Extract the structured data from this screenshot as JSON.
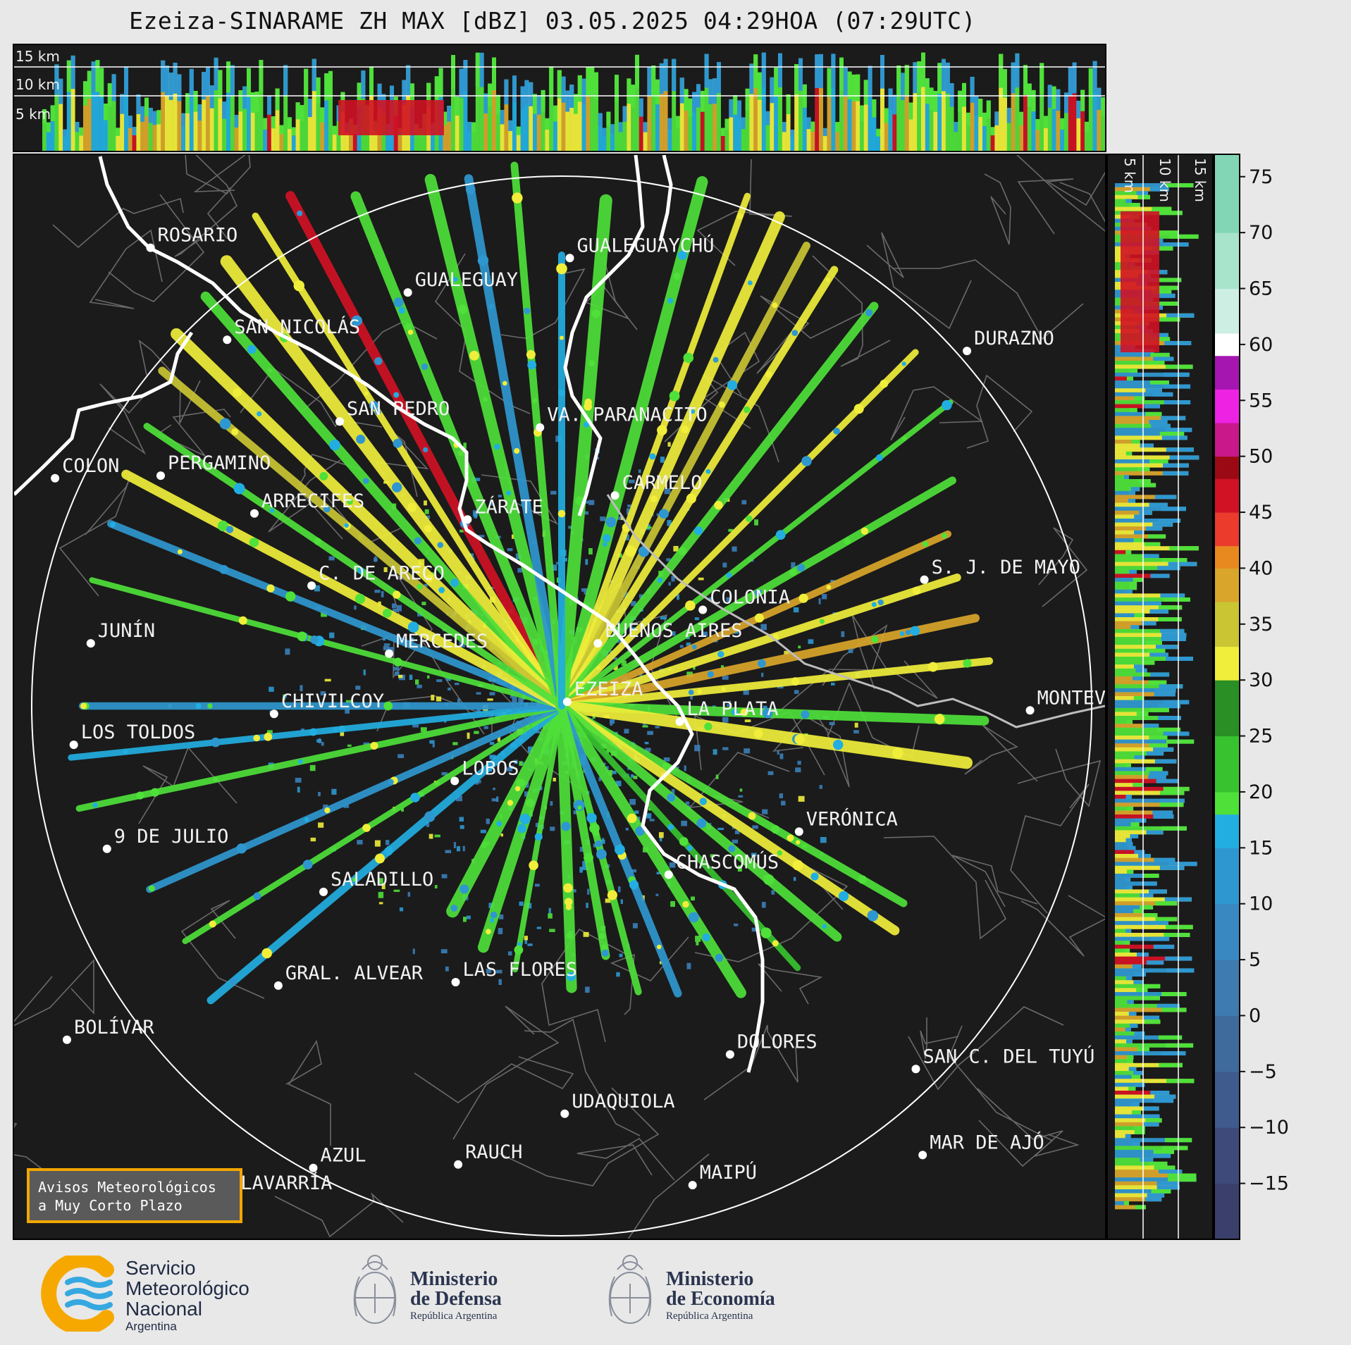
{
  "title": "Ezeiza-SINARAME ZH MAX [dBZ] 03.05.2025 04:29HOA (07:29UTC)",
  "top_panel": {
    "height_labels": [
      "15 km",
      "10 km",
      "5 km"
    ]
  },
  "side_panel": {
    "height_labels": [
      "5 km",
      "10 km",
      "15 km"
    ]
  },
  "colorbar": {
    "ticks": [
      "75",
      "70",
      "65",
      "60",
      "55",
      "50",
      "45",
      "40",
      "35",
      "30",
      "25",
      "20",
      "15",
      "10",
      "5",
      "0",
      "−5",
      "−10",
      "−15"
    ],
    "range": [
      -20,
      77
    ],
    "stops": [
      {
        "from": -20,
        "to": -15,
        "color": "#3b3f6b"
      },
      {
        "from": -15,
        "to": -10,
        "color": "#3d4a7a"
      },
      {
        "from": -10,
        "to": -5,
        "color": "#3f5a8c"
      },
      {
        "from": -5,
        "to": 0,
        "color": "#3f6a9c"
      },
      {
        "from": 0,
        "to": 5,
        "color": "#3d7bb0"
      },
      {
        "from": 5,
        "to": 10,
        "color": "#3a88c2"
      },
      {
        "from": 10,
        "to": 15,
        "color": "#2f97cf"
      },
      {
        "from": 15,
        "to": 18,
        "color": "#22aee0"
      },
      {
        "from": 18,
        "to": 20,
        "color": "#4fe03a"
      },
      {
        "from": 20,
        "to": 25,
        "color": "#38c230"
      },
      {
        "from": 25,
        "to": 30,
        "color": "#2a8f25"
      },
      {
        "from": 30,
        "to": 33,
        "color": "#f0ee3a"
      },
      {
        "from": 33,
        "to": 37,
        "color": "#c9c533"
      },
      {
        "from": 37,
        "to": 40,
        "color": "#d9a52b"
      },
      {
        "from": 40,
        "to": 42,
        "color": "#e8891f"
      },
      {
        "from": 42,
        "to": 45,
        "color": "#ea3b2d"
      },
      {
        "from": 45,
        "to": 48,
        "color": "#d01224"
      },
      {
        "from": 48,
        "to": 50,
        "color": "#9b0a14"
      },
      {
        "from": 50,
        "to": 53,
        "color": "#c8188a"
      },
      {
        "from": 53,
        "to": 56,
        "color": "#ee22e2"
      },
      {
        "from": 56,
        "to": 59,
        "color": "#a515b0"
      },
      {
        "from": 59,
        "to": 61,
        "color": "#ffffff"
      },
      {
        "from": 61,
        "to": 65,
        "color": "#cdeee3"
      },
      {
        "from": 65,
        "to": 70,
        "color": "#a8e3cc"
      },
      {
        "from": 70,
        "to": 77,
        "color": "#82d6b5"
      }
    ]
  },
  "cities": [
    {
      "name": "ROSARIO",
      "lx": 160,
      "ly": 278
    },
    {
      "name": "GUALEGUAYCHÚ",
      "lx": 652,
      "ly": 290
    },
    {
      "name": "GUALEGUAY",
      "lx": 462,
      "ly": 330
    },
    {
      "name": "SAN NICOLÁS",
      "lx": 250,
      "ly": 385
    },
    {
      "name": "DURAZNO",
      "lx": 1118,
      "ly": 398
    },
    {
      "name": "SAN PEDRO",
      "lx": 382,
      "ly": 480
    },
    {
      "name": "VA. PARANACITO",
      "lx": 617,
      "ly": 487
    },
    {
      "name": "COLON",
      "lx": 48,
      "ly": 546
    },
    {
      "name": "PERGAMINO",
      "lx": 172,
      "ly": 543
    },
    {
      "name": "CARMELO",
      "lx": 705,
      "ly": 566
    },
    {
      "name": "ARRECIFES",
      "lx": 282,
      "ly": 587
    },
    {
      "name": "ZÁRATE",
      "lx": 532,
      "ly": 594
    },
    {
      "name": "C. DE ARECO",
      "lx": 349,
      "ly": 671
    },
    {
      "name": "S. J. DE MAYO",
      "lx": 1068,
      "ly": 664
    },
    {
      "name": "COLONIA",
      "lx": 808,
      "ly": 699
    },
    {
      "name": "JUNÍN",
      "lx": 90,
      "ly": 738
    },
    {
      "name": "BUENOS AIRES",
      "lx": 685,
      "ly": 738
    },
    {
      "name": "MERCEDES",
      "lx": 440,
      "ly": 750
    },
    {
      "name": "EZEIZA",
      "lx": 649,
      "ly": 806
    },
    {
      "name": "CHIVILCOY",
      "lx": 305,
      "ly": 820
    },
    {
      "name": "MONTEVIDEO",
      "lx": 1192,
      "ly": 816
    },
    {
      "name": "LA PLATA",
      "lx": 781,
      "ly": 829
    },
    {
      "name": "LOS TOLDOS",
      "lx": 70,
      "ly": 856
    },
    {
      "name": "LOBOS",
      "lx": 517,
      "ly": 898
    },
    {
      "name": "VERÓNICA",
      "lx": 921,
      "ly": 957
    },
    {
      "name": "9 DE JULIO",
      "lx": 109,
      "ly": 977
    },
    {
      "name": "CHASCOMÚS",
      "lx": 768,
      "ly": 1007
    },
    {
      "name": "SALADILLO",
      "lx": 363,
      "ly": 1027
    },
    {
      "name": "GRAL. ALVEAR",
      "lx": 310,
      "ly": 1136
    },
    {
      "name": "LAS FLORES",
      "lx": 518,
      "ly": 1132
    },
    {
      "name": "BOLÍVAR",
      "lx": 62,
      "ly": 1199
    },
    {
      "name": "DOLORES",
      "lx": 840,
      "ly": 1216
    },
    {
      "name": "SAN C. DEL TUYÚ",
      "lx": 1058,
      "ly": 1233
    },
    {
      "name": "UDAQUIOLA",
      "lx": 646,
      "ly": 1285
    },
    {
      "name": "MAR DE AJÓ",
      "lx": 1066,
      "ly": 1333
    },
    {
      "name": "AZUL",
      "lx": 351,
      "ly": 1348
    },
    {
      "name": "RAUCH",
      "lx": 521,
      "ly": 1344
    },
    {
      "name": "OLAVARRÍA",
      "lx": 244,
      "ly": 1380
    },
    {
      "name": "MAIPÚ",
      "lx": 796,
      "ly": 1368
    }
  ],
  "avisos": {
    "line1": "Avisos Meteorológicos",
    "line2": "a Muy Corto Plazo"
  },
  "logos": {
    "smn": {
      "line1": "Servicio",
      "line2": "Meteorológico",
      "line3": "Nacional",
      "country": "Argentina"
    },
    "defensa": {
      "line1": "Ministerio",
      "line2": "de Defensa",
      "sub": "República Argentina"
    },
    "economia": {
      "line1": "Ministerio",
      "line2": "de Economía",
      "sub": "República Argentina"
    }
  }
}
